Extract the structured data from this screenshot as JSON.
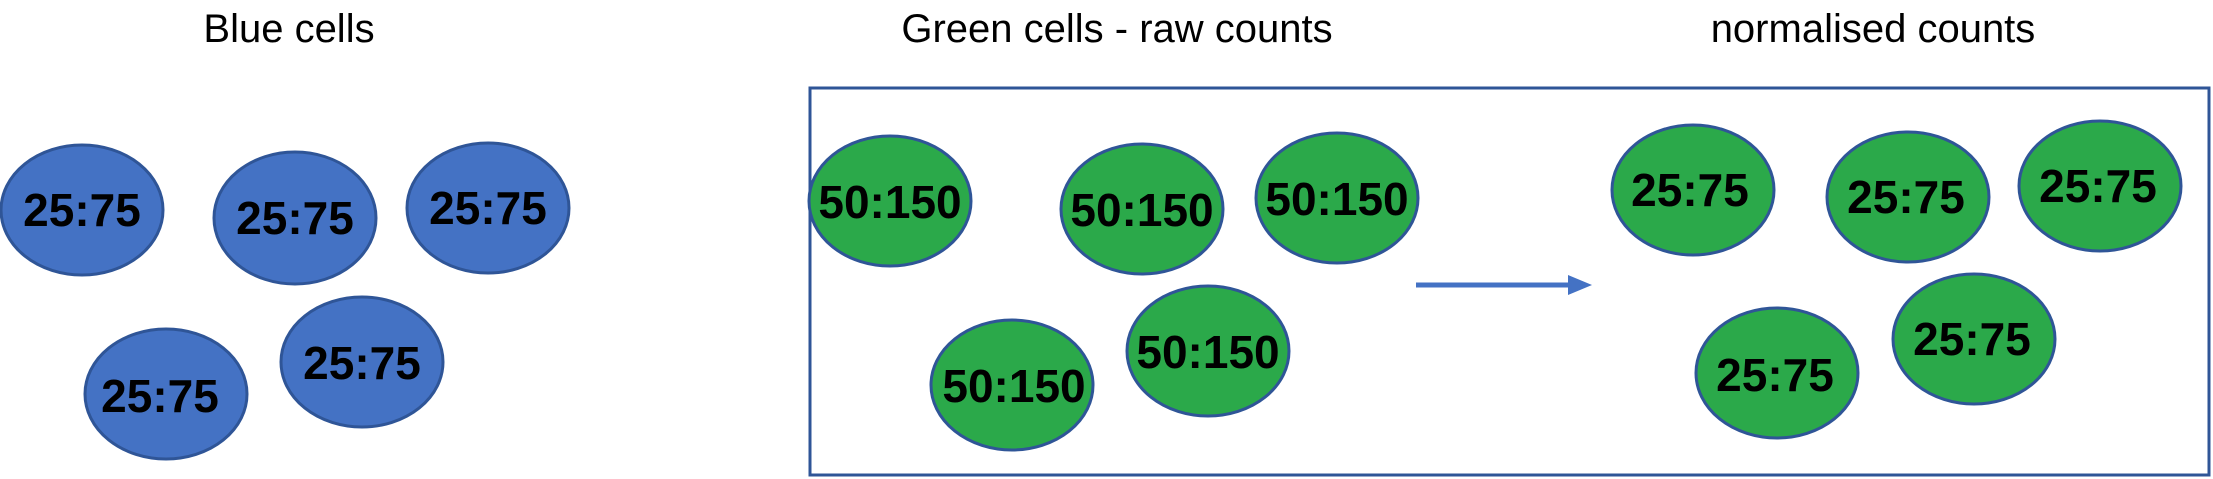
{
  "titles": {
    "blue": "Blue cells",
    "green_raw": "Green cells - raw counts",
    "normalised": "normalised counts"
  },
  "colors": {
    "blue_fill": "#4472C4",
    "green_fill": "#2BA94A",
    "cell_stroke": "#2F5597",
    "box_stroke": "#2F5597",
    "arrow": "#4472C4"
  },
  "blue_cells": [
    {
      "label": "25:75"
    },
    {
      "label": "25:75"
    },
    {
      "label": "25:75"
    },
    {
      "label": "25:75"
    },
    {
      "label": "25:75"
    }
  ],
  "green_raw_cells": [
    {
      "label": "50:150"
    },
    {
      "label": "50:150"
    },
    {
      "label": "50:150"
    },
    {
      "label": "50:150"
    },
    {
      "label": "50:150"
    }
  ],
  "green_norm_cells": [
    {
      "label": "25:75"
    },
    {
      "label": "25:75"
    },
    {
      "label": "25:75"
    },
    {
      "label": "25:75"
    },
    {
      "label": "25:75"
    }
  ]
}
